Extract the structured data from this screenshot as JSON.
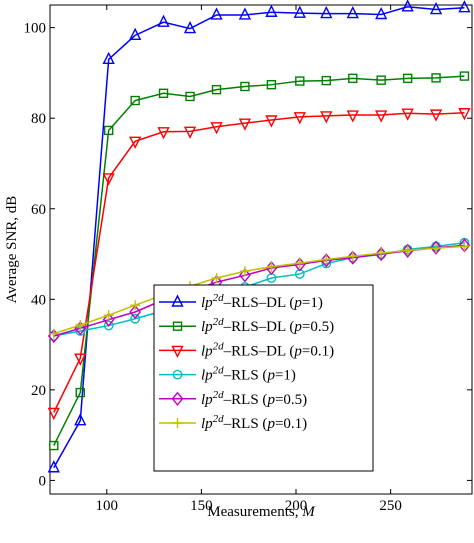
{
  "chart_data": {
    "type": "line",
    "xlabel": "Measurements, M",
    "xlabel_text": "Measurements, ",
    "xlabel_var": "M",
    "ylabel": "Average SNR, dB",
    "xlim": [
      70,
      293
    ],
    "ylim": [
      -3,
      105
    ],
    "xticks": [
      100,
      150,
      200,
      250
    ],
    "yticks": [
      0,
      20,
      40,
      60,
      80,
      100
    ],
    "grid": false,
    "legend_position": "bottom-right",
    "x": [
      72,
      86,
      101,
      115,
      130,
      144,
      158,
      173,
      187,
      202,
      216,
      230,
      245,
      259,
      274,
      289
    ],
    "series": [
      {
        "name": "lp2d-RLS-DL (p=1)",
        "base": "lp",
        "sup": "2d",
        "suffix": "–RLS–DL (",
        "param_var": "p",
        "param_val": "=1)",
        "color": "#0000ff",
        "marker": "triangle-up",
        "values": [
          2.8,
          13.2,
          93,
          98.3,
          101.2,
          99.8,
          102.8,
          102.8,
          103.4,
          103.2,
          103.1,
          103.1,
          102.9,
          104.6,
          104,
          104.4
        ]
      },
      {
        "name": "lp2d-RLS-DL (p=0.5)",
        "base": "lp",
        "sup": "2d",
        "suffix": "–RLS–DL (",
        "param_var": "p",
        "param_val": "=0.5)",
        "color": "#008000",
        "marker": "square",
        "values": [
          7.7,
          19.4,
          77.3,
          83.9,
          85.5,
          84.8,
          86.3,
          87,
          87.4,
          88.2,
          88.3,
          88.8,
          88.4,
          88.8,
          88.9,
          89.3
        ]
      },
      {
        "name": "lp2d-RLS-DL (p=0.1)",
        "base": "lp",
        "sup": "2d",
        "suffix": "–RLS–DL (",
        "param_var": "p",
        "param_val": "=0.1)",
        "color": "#ff0000",
        "marker": "triangle-down",
        "values": [
          15,
          27,
          66.8,
          74.9,
          77,
          77.1,
          78.1,
          78.9,
          79.6,
          80.3,
          80.5,
          80.7,
          80.7,
          81.1,
          80.9,
          81.2
        ]
      },
      {
        "name": "lp2d-RLS (p=1)",
        "base": "lp",
        "sup": "2d",
        "suffix": "–RLS (",
        "param_var": "p",
        "param_val": "=1)",
        "color": "#00bfbf",
        "marker": "circle",
        "values": [
          31.9,
          33,
          34.2,
          35.7,
          37.5,
          38.8,
          40.3,
          42.7,
          44.7,
          45.6,
          47.9,
          49.2,
          49.9,
          51,
          51.7,
          52.5
        ]
      },
      {
        "name": "lp2d-RLS (p=0.5)",
        "base": "lp",
        "sup": "2d",
        "suffix": "–RLS (",
        "param_var": "p",
        "param_val": "=0.5)",
        "color": "#bf00bf",
        "marker": "diamond",
        "values": [
          31.9,
          33.6,
          35.5,
          37.2,
          39.9,
          41.7,
          43.8,
          45.3,
          46.9,
          47.7,
          48.6,
          49.2,
          50,
          50.7,
          51.4,
          51.9
        ]
      },
      {
        "name": "lp2d-RLS (p=0.1)",
        "base": "lp",
        "sup": "2d",
        "suffix": "–RLS (",
        "param_var": "p",
        "param_val": "=0.1)",
        "color": "#bfbf00",
        "marker": "plus",
        "values": [
          32.4,
          34.3,
          36.5,
          38.7,
          41,
          42.9,
          44.7,
          46.2,
          47.2,
          48,
          48.8,
          49.5,
          50.2,
          50.8,
          51.3,
          51.7
        ]
      }
    ]
  }
}
